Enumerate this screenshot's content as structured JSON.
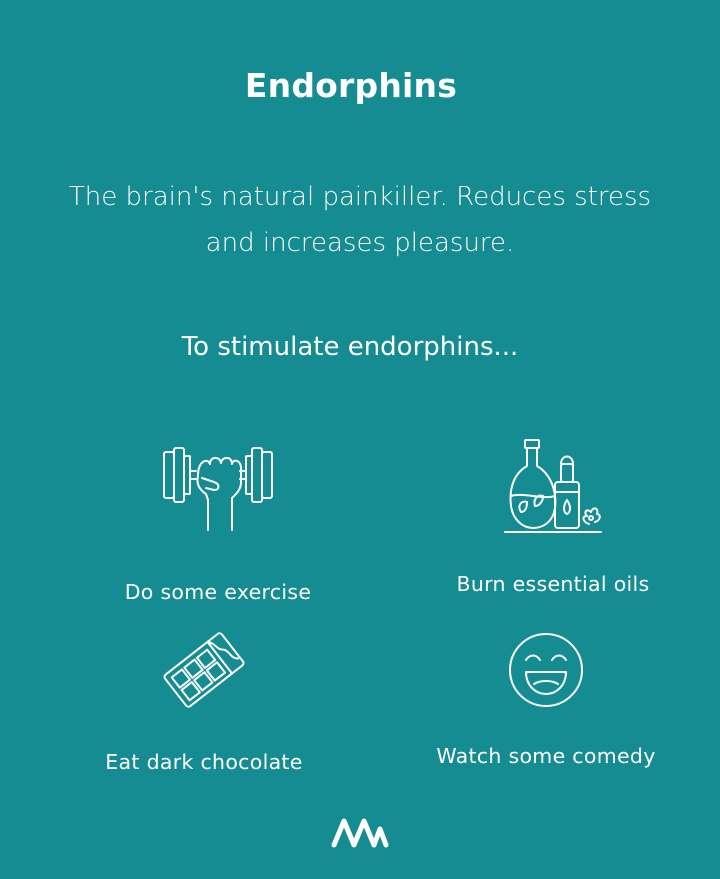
{
  "header": {
    "title": "Endorphins"
  },
  "description": "The brain's natural painkiller. Reduces stress and increases pleasure.",
  "subtitle": "To stimulate endorphins...",
  "items": [
    {
      "label": "Do some exercise",
      "icon": "dumbbell-fist-icon"
    },
    {
      "label": "Burn essential oils",
      "icon": "essential-oil-bottles-icon"
    },
    {
      "label": "Eat dark chocolate",
      "icon": "chocolate-bar-icon"
    },
    {
      "label": "Watch some comedy",
      "icon": "laughing-face-icon"
    }
  ],
  "brand": {
    "logo": "brand-wave-logo-icon"
  },
  "colors": {
    "background": "#148c91",
    "foreground": "#ffffff"
  }
}
